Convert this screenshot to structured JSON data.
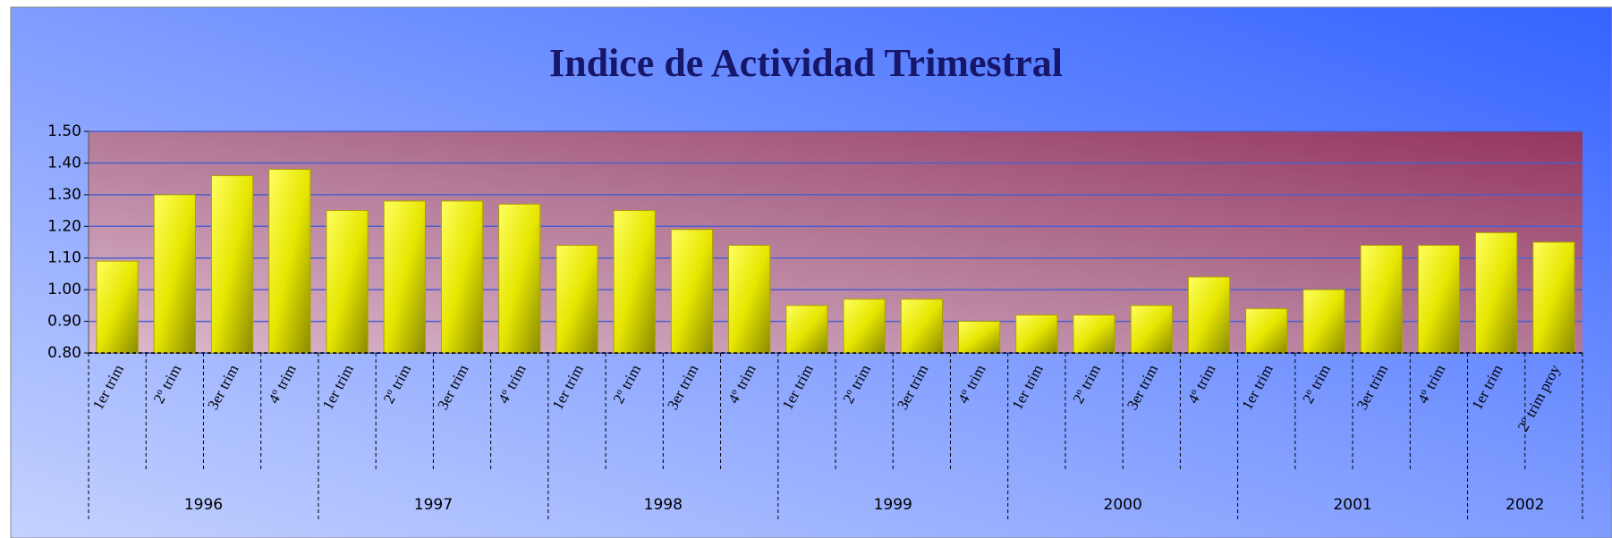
{
  "chart_data": {
    "type": "bar",
    "title": "Indice de Actividad Trimestral",
    "categories": [
      "1er trim",
      "2º trim",
      "3er trim",
      "4º trim",
      "1er trim",
      "2º trim",
      "3er trim",
      "4º trim",
      "1er trim",
      "2º trim",
      "3er trim",
      "4º trim",
      "1er trim",
      "2º trim",
      "3er trim",
      "4º trim",
      "1er trim",
      "2º trim",
      "3er trim",
      "4º trim",
      "1er trim",
      "2º trim",
      "3er trim",
      "4º trim",
      "1er trim",
      "2º trim proy"
    ],
    "groups": [
      "1996",
      "1997",
      "1998",
      "1999",
      "2000",
      "2001",
      "2002"
    ],
    "values": [
      1.09,
      1.3,
      1.36,
      1.38,
      1.25,
      1.28,
      1.28,
      1.27,
      1.14,
      1.25,
      1.19,
      1.14,
      0.95,
      0.97,
      0.97,
      0.9,
      0.92,
      0.92,
      0.95,
      1.04,
      0.94,
      1.0,
      1.14,
      1.14,
      1.18,
      1.15
    ],
    "color": "#e8e800",
    "ylim": [
      0.8,
      1.5
    ],
    "yticks": [
      {
        "value": 0.8,
        "label": "0.80"
      },
      {
        "value": 0.9,
        "label": "0.90"
      },
      {
        "value": 1.0,
        "label": "1.00"
      },
      {
        "value": 1.1,
        "label": "1.10"
      },
      {
        "value": 1.2,
        "label": "1.20"
      },
      {
        "value": 1.3,
        "label": "1.30"
      },
      {
        "value": 1.4,
        "label": "1.40"
      },
      {
        "value": 1.5,
        "label": "1.50"
      }
    ],
    "grid": true
  }
}
